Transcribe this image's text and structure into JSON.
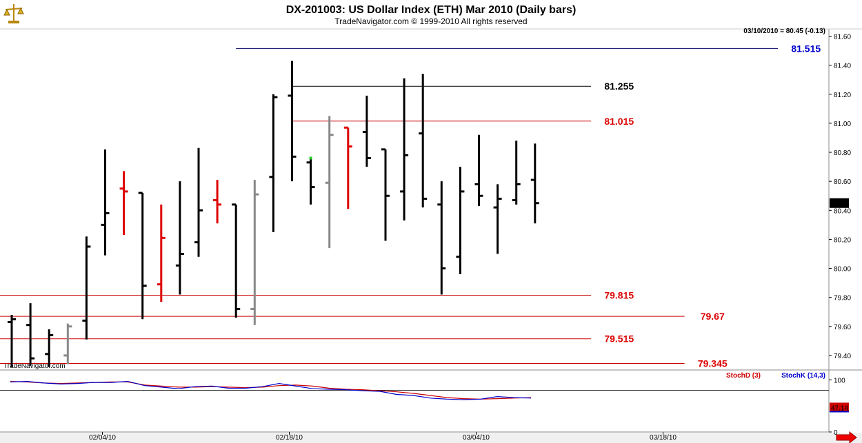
{
  "header": {
    "title": "DX-201003:  US Dollar Index (ETH) Mar 2010  (Daily bars)",
    "subtitle": "TradeNavigator.com © 1999-2010 All rights reserved",
    "last_quote": "03/10/2010 = 80.45 (-0.13)",
    "watermark": "TradeNavigator.com",
    "logo_icon": "scales-icon",
    "scroll_icon": "red-right-arrow-icon"
  },
  "chart_data": [
    {
      "type": "ohlc",
      "ylim": [
        79.3,
        81.65
      ],
      "yticks": [
        79.4,
        79.6,
        79.8,
        80.0,
        80.2,
        80.4,
        80.6,
        80.8,
        81.0,
        81.2,
        81.4,
        81.6
      ],
      "ytick_labels": [
        "79.40",
        "79.60",
        "79.80",
        "80.00",
        "80.20",
        "80.40",
        "80.60",
        "80.80",
        "81.00",
        "81.20",
        "81.40",
        "81.60"
      ],
      "xtick_labels": [
        "02/04/10",
        "02/18/10",
        "03/04/10",
        "03/18/10"
      ],
      "xtick_index": [
        5,
        15,
        25,
        35
      ],
      "last_value_label": "80.45",
      "colors": {
        "up": "#000000",
        "down_red": "#dd0000",
        "gray": "#888888"
      },
      "bars": [
        {
          "o": 79.63,
          "h": 79.68,
          "l": 79.32,
          "c": 79.65,
          "color": "#000000"
        },
        {
          "o": 79.61,
          "h": 79.76,
          "l": 79.33,
          "c": 79.38,
          "color": "#000000"
        },
        {
          "o": 79.41,
          "h": 79.58,
          "l": 79.32,
          "c": 79.54,
          "color": "#000000"
        },
        {
          "o": 79.4,
          "h": 79.62,
          "l": 79.34,
          "c": 79.6,
          "color": "#888888"
        },
        {
          "o": 79.64,
          "h": 80.22,
          "l": 79.51,
          "c": 80.15,
          "color": "#000000"
        },
        {
          "o": 80.3,
          "h": 80.82,
          "l": 80.09,
          "c": 80.38,
          "color": "#000000"
        },
        {
          "o": 80.55,
          "h": 80.67,
          "l": 80.23,
          "c": 80.53,
          "color": "#dd0000"
        },
        {
          "o": 80.52,
          "h": 80.52,
          "l": 79.65,
          "c": 79.88,
          "color": "#000000"
        },
        {
          "o": 79.89,
          "h": 80.44,
          "l": 79.77,
          "c": 80.21,
          "color": "#dd0000"
        },
        {
          "o": 80.02,
          "h": 80.6,
          "l": 79.82,
          "c": 80.1,
          "color": "#000000"
        },
        {
          "o": 80.18,
          "h": 80.83,
          "l": 80.08,
          "c": 80.4,
          "color": "#000000"
        },
        {
          "o": 80.47,
          "h": 80.61,
          "l": 80.31,
          "c": 80.44,
          "color": "#dd0000"
        },
        {
          "o": 80.44,
          "h": 80.44,
          "l": 79.66,
          "c": 79.72,
          "color": "#000000"
        },
        {
          "o": 79.72,
          "h": 80.61,
          "l": 79.61,
          "c": 80.51,
          "color": "#888888"
        },
        {
          "o": 80.63,
          "h": 81.2,
          "l": 80.25,
          "c": 81.18,
          "color": "#000000"
        },
        {
          "o": 81.19,
          "h": 81.43,
          "l": 80.6,
          "c": 80.77,
          "color": "#000000"
        },
        {
          "o": 80.73,
          "h": 80.76,
          "l": 80.44,
          "c": 80.56,
          "color": "#000000"
        },
        {
          "o": 80.59,
          "h": 81.05,
          "l": 80.14,
          "c": 80.92,
          "color": "#888888"
        },
        {
          "o": 80.97,
          "h": 80.97,
          "l": 80.41,
          "c": 80.84,
          "color": "#dd0000"
        },
        {
          "o": 80.94,
          "h": 81.19,
          "l": 80.7,
          "c": 80.76,
          "color": "#000000"
        },
        {
          "o": 80.82,
          "h": 80.82,
          "l": 80.19,
          "c": 80.5,
          "color": "#000000"
        },
        {
          "o": 80.53,
          "h": 81.31,
          "l": 80.33,
          "c": 80.78,
          "color": "#000000"
        },
        {
          "o": 80.93,
          "h": 81.34,
          "l": 80.42,
          "c": 80.48,
          "color": "#000000"
        },
        {
          "o": 80.44,
          "h": 80.6,
          "l": 79.82,
          "c": 80.0,
          "color": "#000000"
        },
        {
          "o": 80.08,
          "h": 80.7,
          "l": 79.96,
          "c": 80.53,
          "color": "#000000"
        },
        {
          "o": 80.58,
          "h": 80.92,
          "l": 80.43,
          "c": 80.5,
          "color": "#000000"
        },
        {
          "o": 80.42,
          "h": 80.58,
          "l": 80.1,
          "c": 80.48,
          "color": "#000000"
        },
        {
          "o": 80.47,
          "h": 80.88,
          "l": 80.44,
          "c": 80.58,
          "color": "#000000"
        },
        {
          "o": 80.61,
          "h": 80.86,
          "l": 80.31,
          "c": 80.45,
          "color": "#000000"
        }
      ],
      "levels": [
        {
          "value": 81.515,
          "label": "81.515",
          "color": "#0000cc",
          "line_color": "#000066",
          "start_index": 12,
          "end_index": 41,
          "label_index": 42.5
        },
        {
          "value": 81.255,
          "label": "81.255",
          "color": "#000000",
          "line_color": "#000000",
          "start_index": 15,
          "end_index": 31,
          "label_index": 32.5
        },
        {
          "value": 81.015,
          "label": "81.015",
          "color": "#dd0000",
          "line_color": "#cc0000",
          "start_index": 15,
          "end_index": 31,
          "label_index": 32.5
        },
        {
          "value": 79.815,
          "label": "79.815",
          "color": "#dd0000",
          "line_color": "#cc0000",
          "start_index": -1,
          "end_index": 31,
          "label_index": 32.5
        },
        {
          "value": 79.67,
          "label": "79.67",
          "color": "#dd0000",
          "line_color": "#cc0000",
          "start_index": -1,
          "end_index": 36,
          "label_index": 37.5
        },
        {
          "value": 79.515,
          "label": "79.515",
          "color": "#dd0000",
          "line_color": "#cc0000",
          "start_index": -1,
          "end_index": 31,
          "label_index": 32.5
        },
        {
          "value": 79.345,
          "label": "79.345",
          "color": "#dd0000",
          "line_color": "#cc0000",
          "start_index": -1,
          "end_index": 36,
          "label_index": 37.5
        }
      ],
      "green_marker": {
        "index": 16,
        "value": 80.76
      }
    },
    {
      "type": "line",
      "ylim": [
        0,
        115
      ],
      "yticks": [
        100,
        0
      ],
      "ytick_labels": [
        "100",
        "0"
      ],
      "reference_line": 80,
      "legend_names": [
        "StochD (3)",
        "StochK (14,3)"
      ],
      "last_value_label": "47.14",
      "series": [
        {
          "name": "StochD (3)",
          "color": "#cc0000",
          "values": [
            97,
            96,
            94,
            93,
            94,
            95,
            96,
            96,
            90,
            88,
            86,
            86,
            87,
            86,
            85,
            86,
            89,
            90,
            88,
            84,
            82,
            81,
            79,
            77,
            74,
            70,
            66,
            64,
            63,
            64,
            65,
            66
          ]
        },
        {
          "name": "StochK (14,3)",
          "color": "#0000cc",
          "values": [
            96,
            97,
            94,
            92,
            93,
            95,
            95,
            97,
            89,
            86,
            83,
            87,
            88,
            84,
            84,
            87,
            93,
            88,
            83,
            82,
            81,
            79,
            78,
            72,
            70,
            65,
            63,
            62,
            63,
            68,
            66,
            65
          ]
        }
      ]
    }
  ]
}
